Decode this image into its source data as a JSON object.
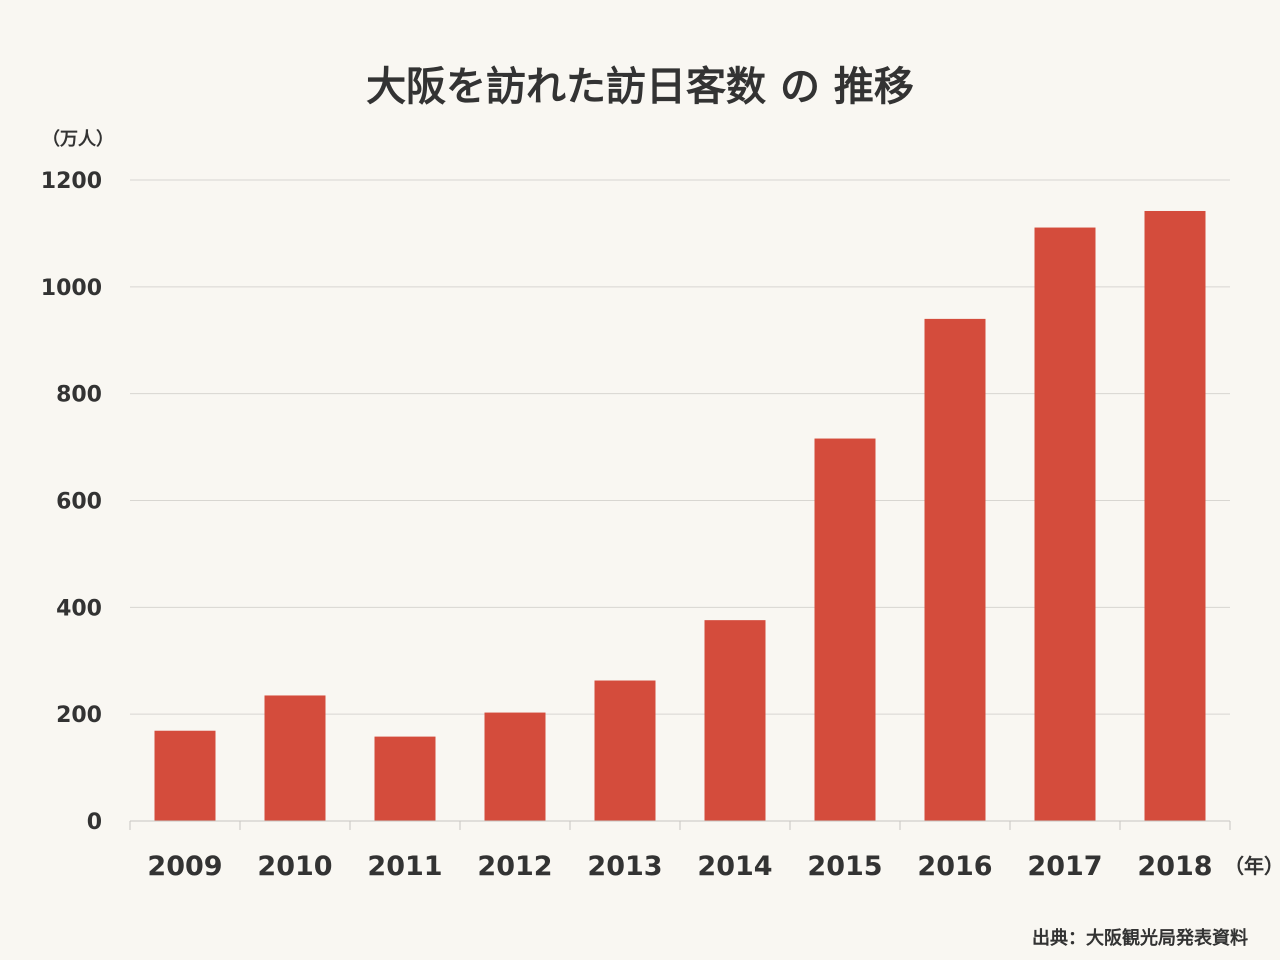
{
  "chart_data": {
    "type": "bar",
    "title": "大阪を訪れた訪日客数 の 推移",
    "ylabel": "（万人）",
    "xlabel": "（年）",
    "source": "出典：大阪観光局発表資料",
    "categories": [
      "2009",
      "2010",
      "2011",
      "2012",
      "2013",
      "2014",
      "2015",
      "2016",
      "2017",
      "2018"
    ],
    "values": [
      169,
      235,
      158,
      203,
      263,
      376,
      716,
      940,
      1111,
      1142
    ],
    "ylim": [
      0,
      1200
    ],
    "yticks": [
      "0",
      "200",
      "400",
      "600",
      "800",
      "1000",
      "1200"
    ],
    "grid": true,
    "bar_color": "#d44c3c"
  }
}
